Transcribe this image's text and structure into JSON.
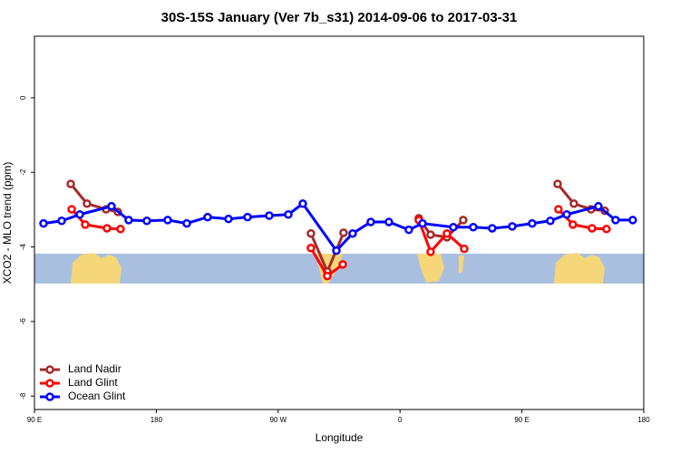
{
  "chart_data": {
    "type": "line",
    "title": "30S-15S January (Ver 7b_s31)   2014-09-06 to 2017-03-31",
    "x_label": "Longitude",
    "y_label": "XCO2 - MLO trend (ppm)",
    "xlim": [
      90,
      540
    ],
    "ylim": [
      -8.36,
      1.65
    ],
    "xticks": [
      {
        "value": 90,
        "label": "90 E"
      },
      {
        "value": 180,
        "label": "180"
      },
      {
        "value": 270,
        "label": "90 W"
      },
      {
        "value": 360,
        "label": "0"
      },
      {
        "value": 450,
        "label": "90 E"
      },
      {
        "value": 540,
        "label": "180"
      }
    ],
    "yticks": [
      0,
      -2,
      -4,
      -6,
      -8
    ],
    "grid": false,
    "legend": "bottom-left",
    "series": [
      {
        "name": "Land Nadir",
        "color": "#a52a2a",
        "x": [
          116.8,
          128.8,
          142.9,
          151.6,
          null,
          294.2,
          306.3,
          318.3,
          null,
          373.9,
          382.6,
          394.7,
          406.7,
          null,
          476.4,
          488.4,
          501.1,
          511.2
        ],
        "values": [
          -2.31,
          -2.84,
          -2.99,
          -3.06,
          null,
          -3.64,
          -4.66,
          -3.62,
          null,
          -3.23,
          -3.67,
          -3.74,
          -3.28,
          null,
          -2.31,
          -2.84,
          -2.99,
          -3.03
        ]
      },
      {
        "name": "Land Glint",
        "color": "#ff0000",
        "x": [
          117.5,
          127.5,
          143.6,
          153.6,
          null,
          294.2,
          306.3,
          317.7,
          null,
          373.9,
          382.6,
          394.7,
          407.4,
          null,
          477.0,
          487.7,
          501.8,
          512.5
        ],
        "values": [
          -2.99,
          -3.4,
          -3.5,
          -3.52,
          null,
          -4.03,
          -4.78,
          -4.47,
          null,
          -3.28,
          -4.13,
          -3.64,
          -4.05,
          null,
          -2.99,
          -3.4,
          -3.5,
          -3.52
        ]
      },
      {
        "name": "Ocean Glint",
        "color": "#0000ff",
        "x": [
          96.7,
          110.1,
          123.5,
          146.9,
          159.6,
          173.0,
          188.4,
          202.5,
          217.9,
          233.3,
          247.4,
          263.4,
          277.5,
          288.2,
          313.0,
          325.0,
          338.4,
          351.8,
          366.5,
          376.6,
          399.4,
          414.1,
          428.1,
          442.9,
          457.6,
          471.0,
          483.1,
          506.5,
          519.2,
          531.9
        ],
        "values": [
          -3.37,
          -3.3,
          -3.13,
          -2.91,
          -3.28,
          -3.3,
          -3.28,
          -3.37,
          -3.2,
          -3.25,
          -3.2,
          -3.16,
          -3.13,
          -2.84,
          -4.1,
          -3.64,
          -3.33,
          -3.33,
          -3.54,
          -3.37,
          -3.47,
          -3.47,
          -3.5,
          -3.45,
          -3.37,
          -3.3,
          -3.13,
          -2.91,
          -3.28,
          -3.28
        ]
      }
    ]
  }
}
